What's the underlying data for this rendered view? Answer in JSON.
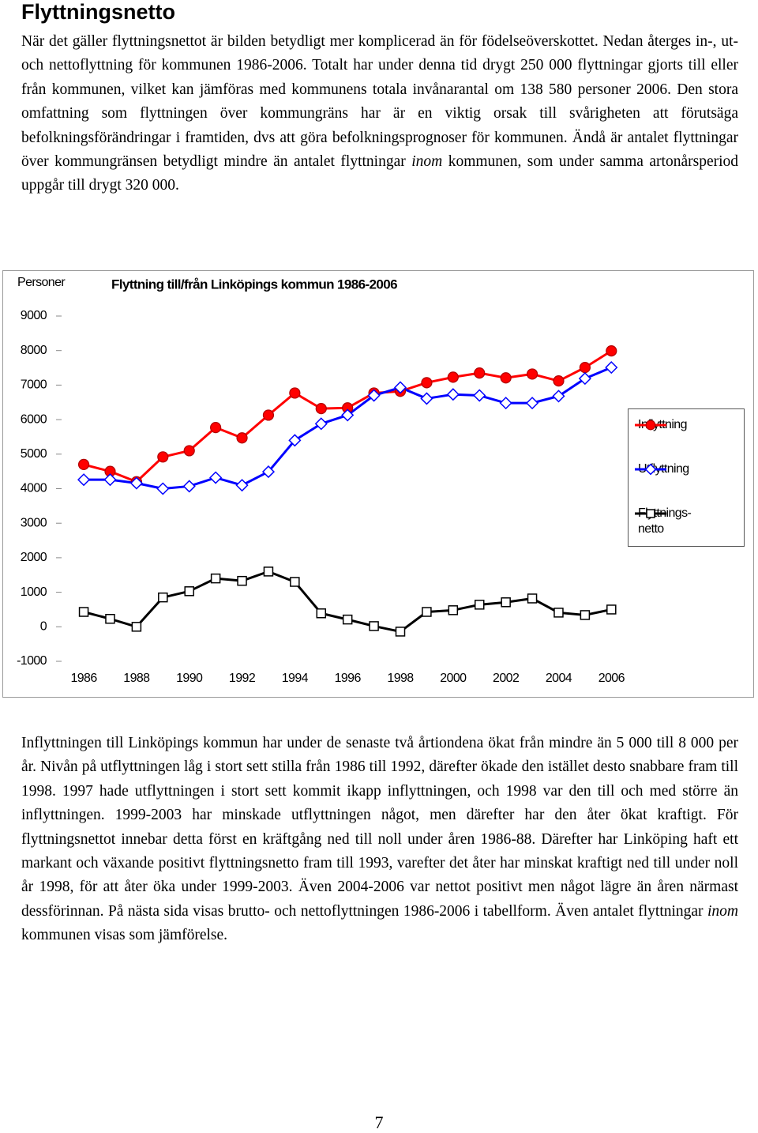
{
  "heading": "Flyttningsnetto",
  "paragraph_1": [
    "När det gäller flyttningsnettot är bilden betydligt mer komplicerad än för födelseöver­skottet. Nedan återges in-, ut- och nettoflyttning för kommunen 1986-2006. Totalt har under denna tid drygt 250 000 flyttningar gjorts till eller från kommunen, vilket kan jämföras med kommunens totala invånarantal om 138 580 personer 2006. Den stora omfattning som flyttningen över kommungräns har är en viktig orsak till svårigheten att förutsäga befolkningsförändringar i framtiden, dvs att göra befolkningsprognoser för kommunen. Ändå är antalet flyttningar över kommungränsen betydligt mindre än antalet flyttningar ",
    "inom",
    " kommunen, som under samma artonårsperiod uppgår till drygt 320 000."
  ],
  "chart_data": {
    "type": "line",
    "title": "Flyttning till/från Linköpings kommun 1986-2006",
    "y_axis_label": "Personer",
    "x": [
      1986,
      1987,
      1988,
      1989,
      1990,
      1991,
      1992,
      1993,
      1994,
      1995,
      1996,
      1997,
      1998,
      1999,
      2000,
      2001,
      2002,
      2003,
      2004,
      2005,
      2006
    ],
    "xlim": [
      1985.1,
      2006.5
    ],
    "xticks": [
      1986,
      1988,
      1990,
      1992,
      1994,
      1996,
      1998,
      2000,
      2002,
      2004,
      2006
    ],
    "ylim": [
      -1000,
      9000
    ],
    "yticks": [
      -1000,
      0,
      1000,
      2000,
      3000,
      4000,
      5000,
      6000,
      7000,
      8000,
      9000
    ],
    "grid": false,
    "legend": "right",
    "series": [
      {
        "name": "Inflyttning",
        "color": "#ff0000",
        "marker": "circle",
        "values": [
          4700,
          4500,
          4200,
          4920,
          5100,
          5770,
          5470,
          6130,
          6770,
          6320,
          6340,
          6770,
          6820,
          7070,
          7230,
          7350,
          7210,
          7320,
          7120,
          7510,
          7990
        ]
      },
      {
        "name": "Utflyttning",
        "color": "#0000ff",
        "marker": "diamond",
        "values": [
          4260,
          4260,
          4160,
          4000,
          4070,
          4320,
          4100,
          4490,
          5400,
          5880,
          6130,
          6700,
          6930,
          6610,
          6730,
          6700,
          6480,
          6480,
          6680,
          7190,
          7510
        ]
      },
      {
        "name": "Flyttnings­netto",
        "color": "#000000",
        "marker": "square",
        "values": [
          430,
          230,
          0,
          850,
          1030,
          1400,
          1330,
          1600,
          1300,
          390,
          210,
          20,
          -140,
          430,
          480,
          640,
          710,
          820,
          410,
          340,
          500
        ]
      }
    ]
  },
  "paragraph_2": [
    "Inflyttningen till Linköpings kommun har under de senaste två årtiondena ökat från mindre än 5 000 till 8 000 per år. Nivån på utflyttningen låg i stort sett stilla från 1986 till 1992, därefter ökade den istället desto snabbare fram till 1998. 1997 hade utflyttningen i stort sett kommit ikapp inflyttningen, och 1998 var den till och med större än inflyttningen. 1999-2003 har minskade utflyttningen något, men därefter har den åter ökat kraftigt. För flyttningsnettot innebar detta först en kräftgång ned till noll under åren 1986-88. Därefter har Linköping haft ett markant och växande positivt flyttningsnetto fram till 1993, varefter det åter har minskat kraftigt ned till under noll år 1998, för att åter öka under 1999-2003. Även 2004-2006 var nettot positivt men något lägre än åren närmast dessförinnan. På nästa sida visas brutto- och nettoflyttningen 1986-2006 i tabellform. Även antalet flyttningar ",
    "inom",
    " kommunen visas som jämförelse."
  ],
  "page_number": "7"
}
